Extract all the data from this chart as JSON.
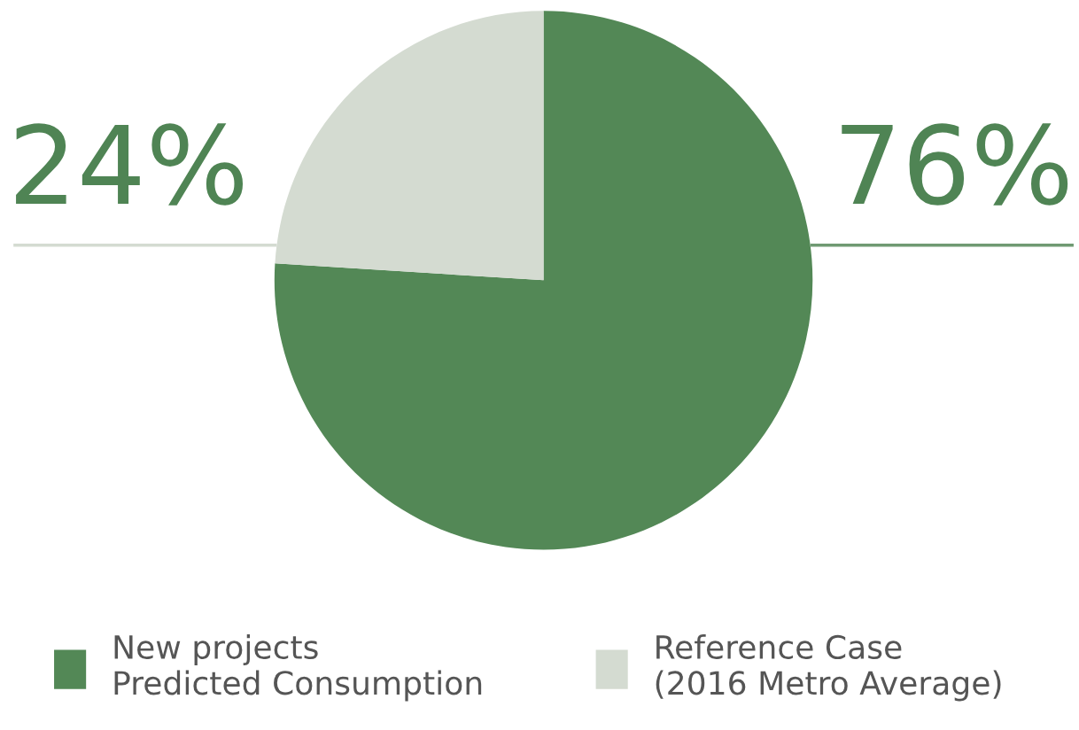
{
  "chart_data": {
    "type": "pie",
    "categories": [
      "New projects\nPredicted Consumption",
      "Reference Case\n(2016 Metro Average)"
    ],
    "values": [
      76,
      24
    ],
    "colors": [
      "#538856",
      "#d4dbd1"
    ],
    "value_labels": [
      "76%",
      "24%"
    ],
    "legend": "bottom"
  }
}
